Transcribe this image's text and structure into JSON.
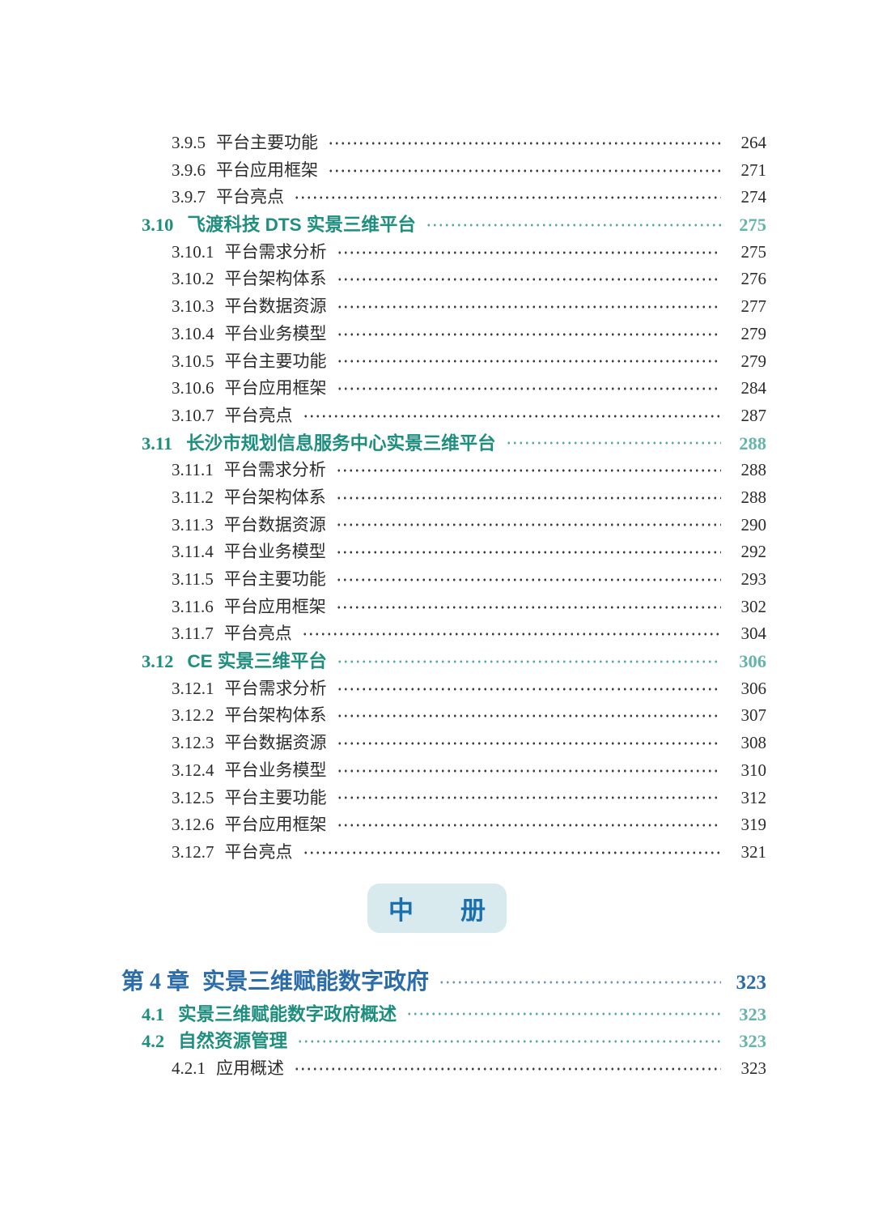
{
  "badge": {
    "left": "中",
    "right": "册"
  },
  "colors": {
    "section_teal": "#1E8E7E",
    "section_page_teal": "#64B4AA",
    "chapter_blue": "#2B6CAB",
    "badge_background": "#D8EAEE",
    "badge_text": "#1A6FAE",
    "body_text": "#2B2B2B"
  },
  "toc_part1": [
    {
      "level": "sub",
      "num": "3.9.5",
      "title": "平台主要功能",
      "page": "264"
    },
    {
      "level": "sub",
      "num": "3.9.6",
      "title": "平台应用框架",
      "page": "271"
    },
    {
      "level": "sub",
      "num": "3.9.7",
      "title": "平台亮点",
      "page": "274"
    },
    {
      "level": "section",
      "num": "3.10",
      "title": "飞渡科技 DTS 实景三维平台",
      "page": "275"
    },
    {
      "level": "sub",
      "num": "3.10.1",
      "title": "平台需求分析",
      "page": "275"
    },
    {
      "level": "sub",
      "num": "3.10.2",
      "title": "平台架构体系",
      "page": "276"
    },
    {
      "level": "sub",
      "num": "3.10.3",
      "title": "平台数据资源",
      "page": "277"
    },
    {
      "level": "sub",
      "num": "3.10.4",
      "title": "平台业务模型",
      "page": "279"
    },
    {
      "level": "sub",
      "num": "3.10.5",
      "title": "平台主要功能",
      "page": "279"
    },
    {
      "level": "sub",
      "num": "3.10.6",
      "title": "平台应用框架",
      "page": "284"
    },
    {
      "level": "sub",
      "num": "3.10.7",
      "title": "平台亮点",
      "page": "287"
    },
    {
      "level": "section",
      "num": "3.11",
      "title": "长沙市规划信息服务中心实景三维平台",
      "page": "288"
    },
    {
      "level": "sub",
      "num": "3.11.1",
      "title": "平台需求分析",
      "page": "288"
    },
    {
      "level": "sub",
      "num": "3.11.2",
      "title": "平台架构体系",
      "page": "288"
    },
    {
      "level": "sub",
      "num": "3.11.3",
      "title": "平台数据资源",
      "page": "290"
    },
    {
      "level": "sub",
      "num": "3.11.4",
      "title": "平台业务模型",
      "page": "292"
    },
    {
      "level": "sub",
      "num": "3.11.5",
      "title": "平台主要功能",
      "page": "293"
    },
    {
      "level": "sub",
      "num": "3.11.6",
      "title": "平台应用框架",
      "page": "302"
    },
    {
      "level": "sub",
      "num": "3.11.7",
      "title": "平台亮点",
      "page": "304"
    },
    {
      "level": "section",
      "num": "3.12",
      "title": "CE 实景三维平台",
      "page": "306"
    },
    {
      "level": "sub",
      "num": "3.12.1",
      "title": "平台需求分析",
      "page": "306"
    },
    {
      "level": "sub",
      "num": "3.12.2",
      "title": "平台架构体系",
      "page": "307"
    },
    {
      "level": "sub",
      "num": "3.12.3",
      "title": "平台数据资源",
      "page": "308"
    },
    {
      "level": "sub",
      "num": "3.12.4",
      "title": "平台业务模型",
      "page": "310"
    },
    {
      "level": "sub",
      "num": "3.12.5",
      "title": "平台主要功能",
      "page": "312"
    },
    {
      "level": "sub",
      "num": "3.12.6",
      "title": "平台应用框架",
      "page": "319"
    },
    {
      "level": "sub",
      "num": "3.12.7",
      "title": "平台亮点",
      "page": "321"
    }
  ],
  "toc_part2": [
    {
      "level": "chapter",
      "num": "第 4 章",
      "title": "实景三维赋能数字政府",
      "page": "323"
    },
    {
      "level": "section",
      "num": "4.1",
      "title": "实景三维赋能数字政府概述",
      "page": "323"
    },
    {
      "level": "section",
      "num": "4.2",
      "title": "自然资源管理",
      "page": "323"
    },
    {
      "level": "sub",
      "num": "4.2.1",
      "title": "应用概述",
      "page": "323"
    }
  ]
}
